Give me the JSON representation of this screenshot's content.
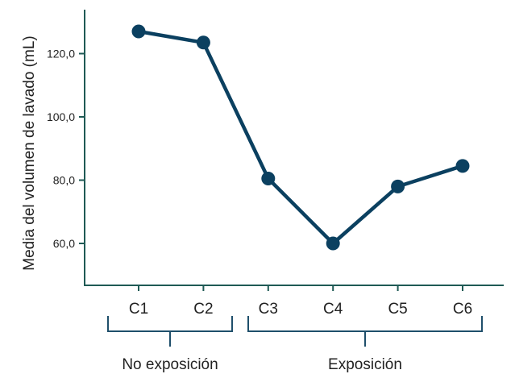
{
  "chart_data": {
    "type": "line",
    "title": "",
    "xlabel": "",
    "ylabel": "Media del volumen de lavado (mL)",
    "categories": [
      "C1",
      "C2",
      "C3",
      "C4",
      "C5",
      "C6"
    ],
    "series": [
      {
        "values": [
          127,
          123.5,
          80.5,
          60,
          78,
          84.5
        ]
      }
    ],
    "yticks": [
      60,
      80,
      100,
      120
    ],
    "ytick_labels": [
      "60,0",
      "80,0",
      "100,0",
      "120,0"
    ],
    "ylim": [
      47,
      142
    ],
    "groups": [
      {
        "label": "No exposición",
        "categories": [
          "C1",
          "C2"
        ]
      },
      {
        "label": "Exposición",
        "categories": [
          "C3",
          "C4",
          "C5",
          "C6"
        ]
      }
    ],
    "color": "#0b4060",
    "axis_color": "#1f5a55",
    "bracket_color": "#1f4f6b",
    "grid": false,
    "legend": "none"
  }
}
